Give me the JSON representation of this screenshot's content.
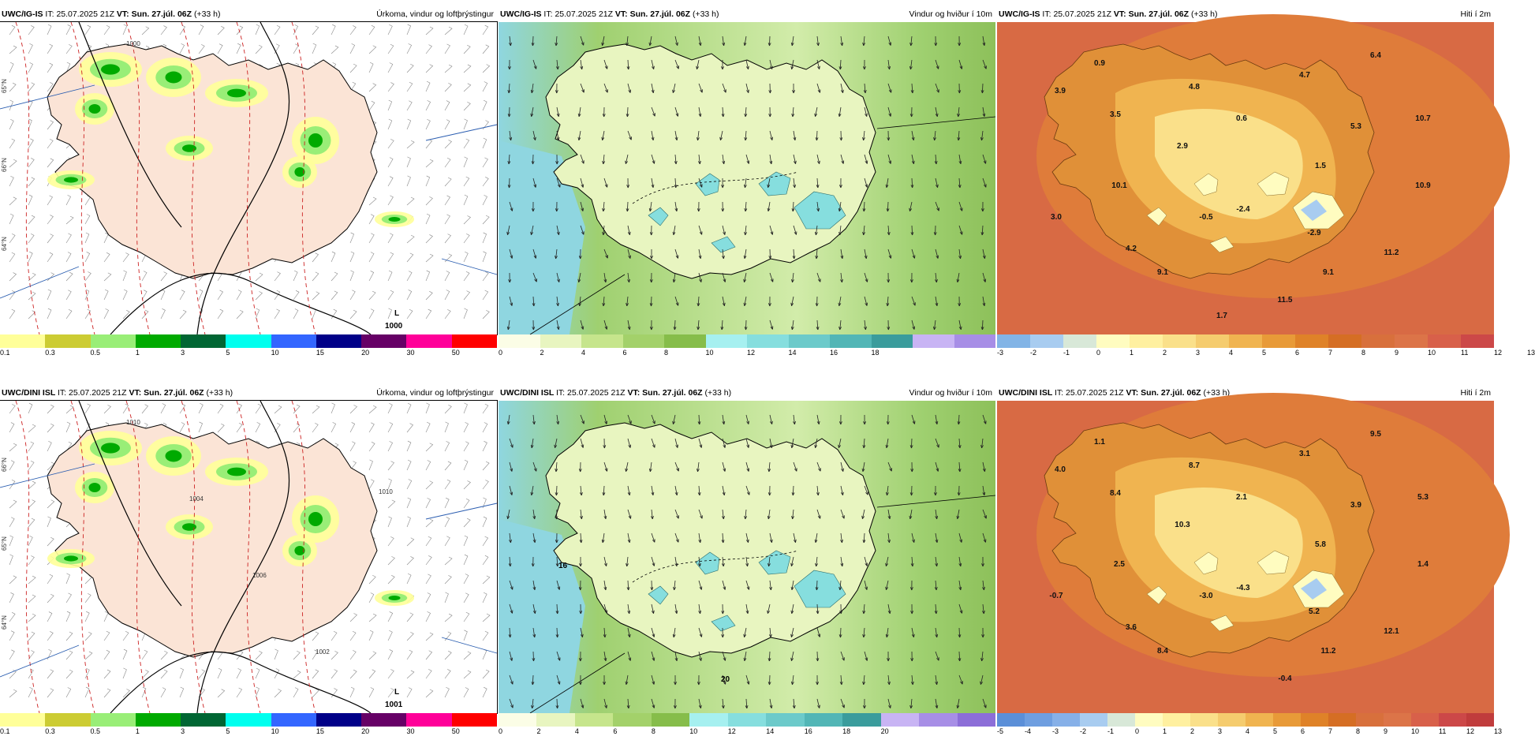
{
  "panels": [
    {
      "id": "ig-precip",
      "type": "precip",
      "model": "UWC/IG-IS",
      "it_label": "IT:",
      "it_value": "25.07.2025 21Z",
      "vt_label": "VT:",
      "vt_value": "Sun. 27.júl. 06Z",
      "lead": "(+33 h)",
      "title": "Úrkoma, vindur og loftþrýstingur",
      "colorbar": {
        "colors": [
          "#ffff99",
          "#cccc33",
          "#99ee77",
          "#00aa00",
          "#006633",
          "#00ffee",
          "#3366ff",
          "#000088",
          "#660066",
          "#ff0099",
          "#ff0000"
        ],
        "ticks": [
          "0.1",
          "0.3",
          "0.5",
          "1",
          "3",
          "5",
          "10",
          "15",
          "20",
          "30",
          "50"
        ]
      },
      "pressure_low_label": "L",
      "pressure_low_value": "1000",
      "isobar_labels": [
        "1000"
      ],
      "lat_labels": [
        "65°N",
        "66°N",
        "64°N"
      ]
    },
    {
      "id": "ig-wind",
      "type": "wind",
      "model": "UWC/IG-IS",
      "it_label": "IT:",
      "it_value": "25.07.2025 21Z",
      "vt_label": "VT:",
      "vt_value": "Sun. 27.júl. 06Z",
      "lead": "(+33 h)",
      "title": "Vindur og hviður í 10m",
      "colorbar": {
        "colors": [
          "#fbfde6",
          "#e8f5c0",
          "#c6e58c",
          "#a3d16a",
          "#86bd4a",
          "#a6f0f0",
          "#86dede",
          "#6ccaca",
          "#52b6b6",
          "#3a9c9c",
          "#c8b4f4",
          "#a78ee6"
        ],
        "ticks": [
          "0",
          "2",
          "4",
          "6",
          "8",
          "10",
          "12",
          "14",
          "16",
          "18"
        ]
      }
    },
    {
      "id": "ig-temp",
      "type": "temp",
      "model": "UWC/IG-IS",
      "it_label": "IT:",
      "it_value": "25.07.2025 21Z",
      "vt_label": "VT:",
      "vt_value": "Sun. 27.júl. 06Z",
      "lead": "(+33 h)",
      "title": "Hiti í 2m",
      "colorbar": {
        "colors": [
          "#82b4e6",
          "#a8ccf0",
          "#d8e8d8",
          "#fffcc0",
          "#fff0a0",
          "#fae08a",
          "#f5cc6e",
          "#f0b450",
          "#e89a38",
          "#df8228",
          "#d56e24",
          "#d8703c",
          "#dc7448",
          "#d8604a",
          "#cc4848"
        ],
        "ticks": [
          "-3",
          "-2",
          "-1",
          "0",
          "1",
          "2",
          "3",
          "4",
          "5",
          "6",
          "7",
          "8",
          "9",
          "10",
          "11",
          "12",
          "13"
        ]
      },
      "values": [
        "0.9",
        "6.4",
        "3.9",
        "4.8",
        "4.7",
        "3.5",
        "0.6",
        "5.3",
        "10.7",
        "2.9",
        "1.5",
        "10.9",
        "10.1",
        "3.0",
        "-0.5",
        "-2.4",
        "-2.9",
        "4.2",
        "11.2",
        "9.1",
        "9.1",
        "11.5",
        "1.7"
      ]
    },
    {
      "id": "dini-precip",
      "type": "precip",
      "model": "UWC/DINI ISL",
      "it_label": "IT:",
      "it_value": "25.07.2025 21Z",
      "vt_label": "VT:",
      "vt_value": "Sun. 27.júl. 06Z",
      "lead": "(+33 h)",
      "title": "Úrkoma, vindur og loftþrýstingur",
      "colorbar": {
        "colors": [
          "#ffff99",
          "#cccc33",
          "#99ee77",
          "#00aa00",
          "#006633",
          "#00ffee",
          "#3366ff",
          "#000088",
          "#660066",
          "#ff0099",
          "#ff0000"
        ],
        "ticks": [
          "0.1",
          "0.3",
          "0.5",
          "1",
          "3",
          "5",
          "10",
          "15",
          "20",
          "30",
          "50"
        ]
      },
      "pressure_low_label": "L",
      "pressure_low_value": "1001",
      "isobar_labels": [
        "1010",
        "1004",
        "1006",
        "1002",
        "1010"
      ],
      "lat_labels": [
        "66°N",
        "65°N",
        "64°N"
      ]
    },
    {
      "id": "dini-wind",
      "type": "wind",
      "model": "UWC/DINI ISL",
      "it_label": "IT:",
      "it_value": "25.07.2025 21Z",
      "vt_label": "VT:",
      "vt_value": "Sun. 27.júl. 06Z",
      "lead": "(+33 h)",
      "title": "Vindur og hviður í 10m",
      "colorbar": {
        "colors": [
          "#fbfde6",
          "#e8f5c0",
          "#c6e58c",
          "#a3d16a",
          "#86bd4a",
          "#a6f0f0",
          "#86dede",
          "#6ccaca",
          "#52b6b6",
          "#3a9c9c",
          "#c8b4f4",
          "#a78ee6",
          "#8c6ed8"
        ],
        "ticks": [
          "0",
          "2",
          "4",
          "6",
          "8",
          "10",
          "12",
          "14",
          "16",
          "18",
          "20"
        ]
      },
      "gust_labels": [
        "16",
        "20"
      ]
    },
    {
      "id": "dini-temp",
      "type": "temp",
      "model": "UWC/DINI ISL",
      "it_label": "IT:",
      "it_value": "25.07.2025 21Z",
      "vt_label": "VT:",
      "vt_value": "Sun. 27.júl. 06Z",
      "lead": "(+33 h)",
      "title": "Hiti í 2m",
      "colorbar": {
        "colors": [
          "#5b8fd8",
          "#6e9ee0",
          "#86b0e8",
          "#a8ccf0",
          "#d8e8d8",
          "#fffcc0",
          "#fff0a0",
          "#fae08a",
          "#f5cc6e",
          "#f0b450",
          "#e89a38",
          "#df8228",
          "#d56e24",
          "#d8703c",
          "#dc7448",
          "#d8604a",
          "#cc4848",
          "#c03c3c"
        ],
        "ticks": [
          "-5",
          "-4",
          "-3",
          "-2",
          "-1",
          "0",
          "1",
          "2",
          "3",
          "4",
          "5",
          "6",
          "7",
          "8",
          "9",
          "10",
          "11",
          "12",
          "13"
        ]
      },
      "values": [
        "1.1",
        "9.5",
        "4.0",
        "8.7",
        "3.1",
        "8.4",
        "2.1",
        "3.9",
        "5.3",
        "10.3",
        "5.8",
        "1.4",
        "2.5",
        "-0.7",
        "-3.0",
        "-4.3",
        "5.2",
        "3.6",
        "12.1",
        "8.4",
        "11.2",
        "-0.4"
      ]
    }
  ]
}
